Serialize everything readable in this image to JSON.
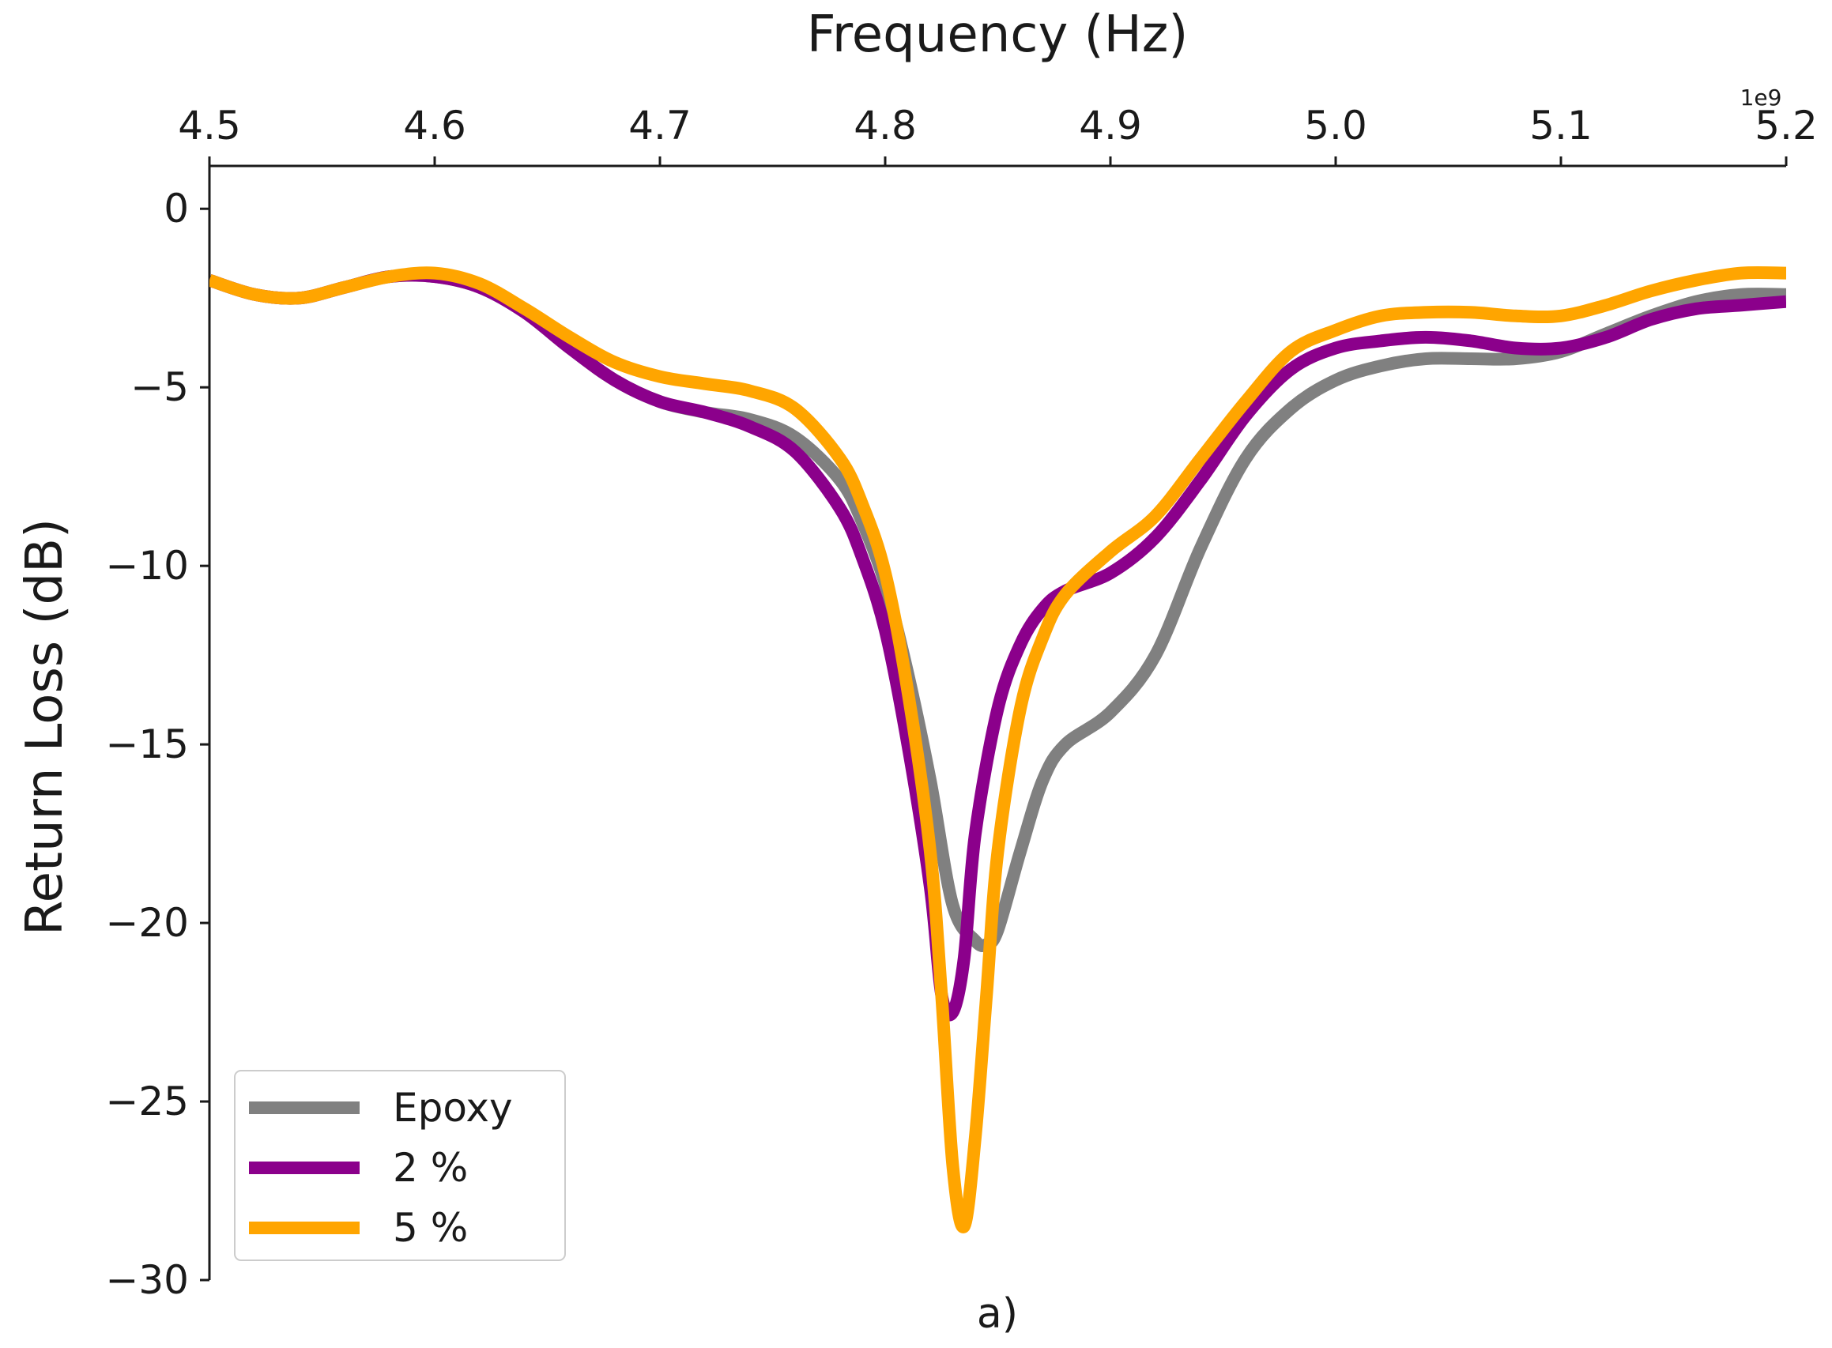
{
  "chart_data": {
    "type": "line",
    "xlabel": "Frequency (Hz)",
    "ylabel": "Return Loss (dB)",
    "x_offset_label": "1e9",
    "caption": "a)",
    "xlim": [
      4500000000.0,
      5200000000.0
    ],
    "ylim": [
      -30,
      1.2
    ],
    "x_ticks": [
      4500000000.0,
      4600000000.0,
      4700000000.0,
      4800000000.0,
      4900000000.0,
      5000000000.0,
      5100000000.0,
      5200000000.0
    ],
    "x_tick_labels": [
      "4.5",
      "4.6",
      "4.7",
      "4.8",
      "4.9",
      "5.0",
      "5.1",
      "5.2"
    ],
    "y_ticks": [
      0,
      -5,
      -10,
      -15,
      -20,
      -25,
      -30
    ],
    "y_tick_labels": [
      "0",
      "−5",
      "−10",
      "−15",
      "−20",
      "−25",
      "−30"
    ],
    "x_axis_position": "top",
    "grid": false,
    "legend_position": "bottom-left",
    "series": [
      {
        "name": "Epoxy",
        "color": "#808080",
        "x": [
          4500000000.0,
          4520000000.0,
          4540000000.0,
          4560000000.0,
          4580000000.0,
          4600000000.0,
          4620000000.0,
          4640000000.0,
          4660000000.0,
          4680000000.0,
          4700000000.0,
          4720000000.0,
          4740000000.0,
          4760000000.0,
          4780000000.0,
          4790000000.0,
          4800000000.0,
          4810000000.0,
          4820000000.0,
          4830000000.0,
          4840000000.0,
          4845000000.0,
          4850000000.0,
          4860000000.0,
          4870000000.0,
          4880000000.0,
          4900000000.0,
          4920000000.0,
          4940000000.0,
          4960000000.0,
          4980000000.0,
          5000000000.0,
          5020000000.0,
          5040000000.0,
          5060000000.0,
          5080000000.0,
          5100000000.0,
          5120000000.0,
          5140000000.0,
          5160000000.0,
          5180000000.0,
          5200000000.0
        ],
        "y": [
          -2.0,
          -2.4,
          -2.5,
          -2.2,
          -1.9,
          -1.9,
          -2.2,
          -2.9,
          -3.9,
          -4.8,
          -5.4,
          -5.7,
          -5.9,
          -6.4,
          -7.6,
          -8.8,
          -10.5,
          -13.0,
          -16.0,
          -19.5,
          -20.5,
          -20.6,
          -20.2,
          -18.0,
          -16.0,
          -15.0,
          -14.1,
          -12.5,
          -9.5,
          -7.0,
          -5.6,
          -4.8,
          -4.4,
          -4.2,
          -4.2,
          -4.2,
          -4.0,
          -3.5,
          -3.0,
          -2.6,
          -2.4,
          -2.4
        ]
      },
      {
        "name": "2 %",
        "color": "#8B008B",
        "x": [
          4500000000.0,
          4520000000.0,
          4540000000.0,
          4560000000.0,
          4580000000.0,
          4600000000.0,
          4620000000.0,
          4640000000.0,
          4660000000.0,
          4680000000.0,
          4700000000.0,
          4720000000.0,
          4740000000.0,
          4760000000.0,
          4780000000.0,
          4790000000.0,
          4800000000.0,
          4810000000.0,
          4820000000.0,
          4825000000.0,
          4830000000.0,
          4835000000.0,
          4840000000.0,
          4850000000.0,
          4860000000.0,
          4870000000.0,
          4880000000.0,
          4900000000.0,
          4920000000.0,
          4940000000.0,
          4960000000.0,
          4980000000.0,
          5000000000.0,
          5020000000.0,
          5040000000.0,
          5060000000.0,
          5080000000.0,
          5100000000.0,
          5120000000.0,
          5140000000.0,
          5160000000.0,
          5180000000.0,
          5200000000.0
        ],
        "y": [
          -2.0,
          -2.4,
          -2.5,
          -2.2,
          -1.9,
          -1.9,
          -2.2,
          -2.9,
          -3.9,
          -4.8,
          -5.4,
          -5.7,
          -6.1,
          -6.8,
          -8.4,
          -9.8,
          -11.8,
          -15.0,
          -19.0,
          -22.0,
          -22.5,
          -21.0,
          -17.5,
          -14.0,
          -12.2,
          -11.2,
          -10.7,
          -10.2,
          -9.2,
          -7.6,
          -5.8,
          -4.5,
          -3.9,
          -3.7,
          -3.6,
          -3.7,
          -3.9,
          -3.9,
          -3.6,
          -3.1,
          -2.8,
          -2.7,
          -2.6
        ]
      },
      {
        "name": "5 %",
        "color": "#FFA500",
        "x": [
          4500000000.0,
          4520000000.0,
          4540000000.0,
          4560000000.0,
          4580000000.0,
          4600000000.0,
          4620000000.0,
          4640000000.0,
          4660000000.0,
          4680000000.0,
          4700000000.0,
          4720000000.0,
          4740000000.0,
          4760000000.0,
          4780000000.0,
          4790000000.0,
          4800000000.0,
          4810000000.0,
          4820000000.0,
          4825000000.0,
          4830000000.0,
          4835000000.0,
          4840000000.0,
          4845000000.0,
          4850000000.0,
          4860000000.0,
          4870000000.0,
          4880000000.0,
          4900000000.0,
          4920000000.0,
          4940000000.0,
          4960000000.0,
          4980000000.0,
          5000000000.0,
          5020000000.0,
          5040000000.0,
          5060000000.0,
          5080000000.0,
          5100000000.0,
          5120000000.0,
          5140000000.0,
          5160000000.0,
          5180000000.0,
          5200000000.0
        ],
        "y": [
          -2.0,
          -2.4,
          -2.5,
          -2.2,
          -1.9,
          -1.8,
          -2.1,
          -2.8,
          -3.6,
          -4.3,
          -4.7,
          -4.9,
          -5.1,
          -5.6,
          -7.0,
          -8.3,
          -10.2,
          -13.5,
          -18.0,
          -22.0,
          -26.8,
          -28.5,
          -26.0,
          -22.0,
          -18.0,
          -14.0,
          -12.0,
          -10.8,
          -9.6,
          -8.6,
          -7.0,
          -5.4,
          -4.0,
          -3.4,
          -3.0,
          -2.9,
          -2.9,
          -3.0,
          -3.0,
          -2.7,
          -2.3,
          -2.0,
          -1.8,
          -1.8
        ]
      }
    ]
  }
}
